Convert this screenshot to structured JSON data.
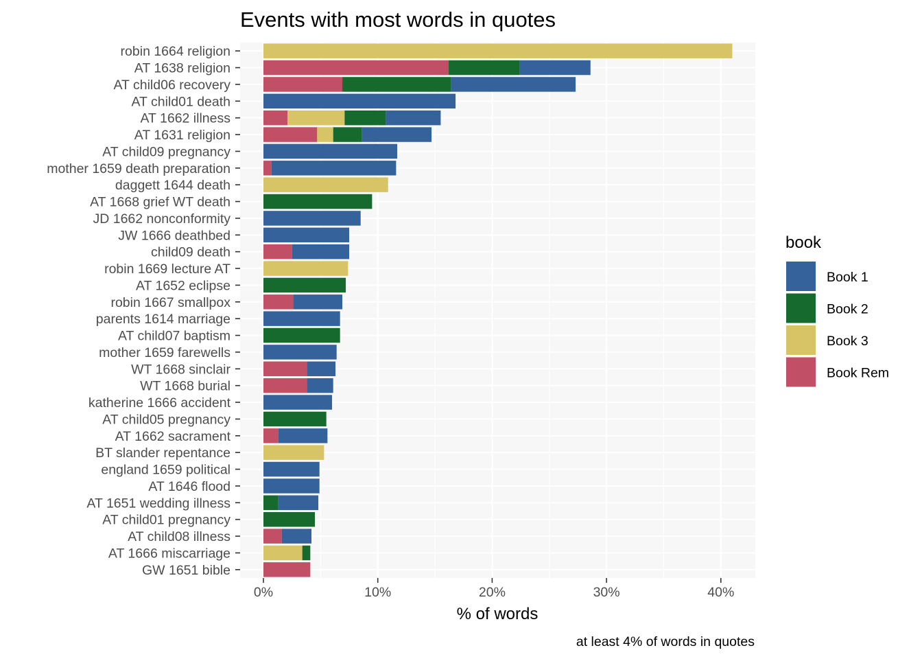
{
  "chart_data": {
    "type": "bar",
    "orientation": "horizontal",
    "stacked": true,
    "title": "Events with most words in quotes",
    "xlabel": "% of words",
    "ylabel": "",
    "caption": "at least 4% of words in quotes",
    "xlim": [
      0,
      43
    ],
    "x_ticks": [
      "0%",
      "10%",
      "20%",
      "30%",
      "40%"
    ],
    "x_tick_values": [
      0,
      10,
      20,
      30,
      40
    ],
    "grid": true,
    "legend": {
      "title": "book",
      "position": "right",
      "entries": [
        "Book 1",
        "Book 2",
        "Book 3",
        "Book Rem"
      ]
    },
    "stack_order": [
      "Book Rem",
      "Book 3",
      "Book 2",
      "Book 1"
    ],
    "colors": {
      "Book 1": "#36629b",
      "Book 2": "#166a2e",
      "Book 3": "#d6c466",
      "Book Rem": "#c14f66"
    },
    "categories": [
      "robin 1664 religion",
      "AT 1638 religion",
      "AT child06 recovery",
      "AT child01 death",
      "AT 1662 illness",
      "AT 1631 religion",
      "AT child09 pregnancy",
      "mother 1659 death preparation",
      "daggett 1644 death",
      "AT 1668 grief WT death",
      "JD 1662 nonconformity",
      "JW 1666 deathbed",
      "child09 death",
      "robin 1669 lecture AT",
      "AT 1652 eclipse",
      "robin 1667 smallpox",
      "parents 1614 marriage",
      "AT child07 baptism",
      "mother 1659 farewells",
      "WT 1668 sinclair",
      "WT 1668 burial",
      "katherine 1666 accident",
      "AT child05 pregnancy",
      "AT 1662 sacrament",
      "BT slander repentance",
      "england 1659 political",
      "AT 1646 flood",
      "AT 1651 wedding illness",
      "AT child01 pregnancy",
      "AT child08 illness",
      "AT 1666 miscarriage",
      "GW 1651 bible"
    ],
    "series": [
      {
        "name": "Book Rem",
        "values": [
          0,
          16.2,
          6.9,
          0,
          2.1,
          4.7,
          0,
          0.7,
          0,
          0,
          0,
          0,
          2.5,
          0,
          0,
          2.6,
          0,
          0,
          0,
          3.8,
          3.8,
          0,
          0,
          1.3,
          0,
          0,
          0,
          0,
          0,
          1.6,
          0,
          4.1
        ]
      },
      {
        "name": "Book 3",
        "values": [
          41.0,
          0,
          0,
          0,
          5.0,
          1.4,
          0,
          0,
          10.9,
          0,
          0,
          0,
          0,
          7.4,
          0,
          0,
          0,
          0,
          0,
          0,
          0,
          0,
          0,
          0,
          5.3,
          0,
          0,
          0,
          0,
          0,
          3.4,
          0
        ]
      },
      {
        "name": "Book 2",
        "values": [
          0,
          6.2,
          9.5,
          0,
          3.6,
          2.5,
          0,
          0,
          0,
          9.5,
          0,
          0,
          0,
          0,
          7.2,
          0,
          0,
          6.7,
          0,
          0,
          0,
          0,
          5.5,
          0,
          0,
          0,
          0,
          1.3,
          4.5,
          0,
          0.7,
          0
        ]
      },
      {
        "name": "Book 1",
        "values": [
          0,
          6.2,
          10.9,
          16.8,
          4.8,
          6.1,
          11.7,
          10.9,
          0,
          0,
          8.5,
          7.5,
          5.0,
          0,
          0,
          4.3,
          6.7,
          0,
          6.4,
          2.5,
          2.3,
          6.0,
          0,
          4.3,
          0,
          4.9,
          4.9,
          3.5,
          0,
          2.6,
          0,
          0
        ]
      }
    ]
  }
}
